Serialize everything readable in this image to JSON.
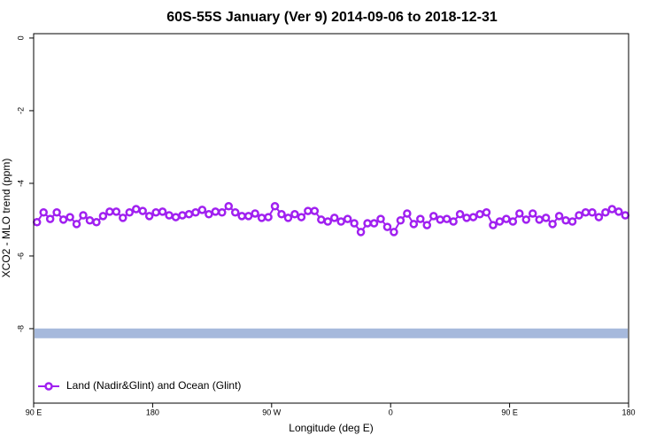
{
  "chart_data": {
    "type": "line",
    "title": "60S-55S January (Ver 9)   2014-09-06 to 2018-12-31",
    "x_label": "Longitude (deg E)",
    "y_label": "XCO2 - MLO trend (ppm)",
    "xlim": [
      90,
      540
    ],
    "xticks": [
      {
        "value": 90,
        "label": "90 E"
      },
      180,
      {
        "value": 270,
        "label": "90 W"
      },
      {
        "value": 360,
        "label": "0"
      },
      {
        "value": 450,
        "label": "90 E"
      },
      {
        "value": 540,
        "label": "180"
      }
    ],
    "ylim": [
      -10.05,
      0.12
    ],
    "yticks": [
      0,
      -2,
      -4,
      -6,
      -8
    ],
    "legend": "bottomleft",
    "band": {
      "value": -8.13,
      "color": "#a6b9dc"
    },
    "x": [
      92.5,
      97.5,
      102.5,
      107.5,
      112.5,
      117.5,
      122.5,
      127.5,
      132.5,
      137.5,
      142.5,
      147.5,
      152.5,
      157.5,
      162.5,
      167.5,
      172.5,
      177.5,
      182.5,
      187.5,
      192.5,
      197.5,
      202.5,
      207.5,
      212.5,
      217.5,
      222.5,
      227.5,
      232.5,
      237.5,
      242.5,
      247.5,
      252.5,
      257.5,
      262.5,
      267.5,
      272.5,
      277.5,
      282.5,
      287.5,
      292.5,
      297.5,
      302.5,
      307.5,
      312.5,
      317.5,
      322.5,
      327.5,
      332.5,
      337.5,
      342.5,
      347.5,
      352.5,
      357.5,
      362.5,
      367.5,
      372.5,
      377.5,
      382.5,
      387.5,
      392.5,
      397.5,
      402.5,
      407.5,
      412.5,
      417.5,
      422.5,
      427.5,
      432.5,
      437.5,
      442.5,
      447.5,
      452.5,
      457.5,
      462.5,
      467.5,
      472.5,
      477.5,
      482.5,
      487.5,
      492.5,
      497.5,
      502.5,
      507.5,
      512.5,
      517.5,
      522.5,
      527.5,
      532.5,
      537.5
    ],
    "series": [
      {
        "name": "Land (Nadir&Glint) and Ocean (Glint)",
        "color": "#a020f0",
        "values": [
          -5.07,
          -4.8,
          -4.98,
          -4.8,
          -5.0,
          -4.93,
          -5.12,
          -4.88,
          -5.02,
          -5.07,
          -4.9,
          -4.78,
          -4.78,
          -4.95,
          -4.8,
          -4.71,
          -4.76,
          -4.9,
          -4.8,
          -4.78,
          -4.88,
          -4.93,
          -4.88,
          -4.85,
          -4.8,
          -4.73,
          -4.85,
          -4.78,
          -4.8,
          -4.63,
          -4.8,
          -4.9,
          -4.9,
          -4.83,
          -4.95,
          -4.93,
          -4.63,
          -4.85,
          -4.95,
          -4.85,
          -4.93,
          -4.76,
          -4.76,
          -5.0,
          -5.05,
          -4.95,
          -5.05,
          -4.98,
          -5.1,
          -5.34,
          -5.1,
          -5.1,
          -4.98,
          -5.2,
          -5.34,
          -5.02,
          -4.83,
          -5.12,
          -4.98,
          -5.15,
          -4.9,
          -5.0,
          -4.98,
          -5.05,
          -4.85,
          -4.95,
          -4.93,
          -4.85,
          -4.8,
          -5.15,
          -5.05,
          -4.98,
          -5.05,
          -4.83,
          -5.0,
          -4.83,
          -5.0,
          -4.95,
          -5.12,
          -4.9,
          -5.02,
          -5.05,
          -4.88,
          -4.8,
          -4.8,
          -4.93,
          -4.8,
          -4.71,
          -4.78,
          -4.88
        ]
      }
    ]
  }
}
